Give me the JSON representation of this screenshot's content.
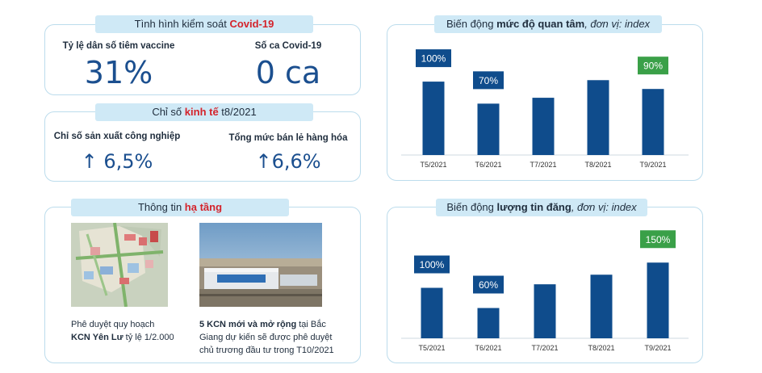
{
  "covid": {
    "title_prefix": "Tình hình kiểm soát ",
    "title_highlight": "Covid-19",
    "vaccine_label": "Tỷ lệ dân số tiêm vaccine",
    "vaccine_value": "31%",
    "cases_label": "Số ca Covid-19",
    "cases_value": "0 ca"
  },
  "economy": {
    "title_prefix": "Chỉ số ",
    "title_highlight": "kinh tế",
    "title_suffix": " t8/2021",
    "industry_label": "Chỉ số sản xuất công nghiệp",
    "industry_value": "6,5%",
    "retail_label": "Tổng mức bán lẻ hàng hóa",
    "retail_value": "6,6%"
  },
  "infrastructure": {
    "title_prefix": "Thông tin ",
    "title_highlight": "hạ tầng",
    "caption1_line1": "Phê duyệt quy hoạch",
    "caption1_bold": "KCN Yên Lư",
    "caption1_rest": " tỷ lệ 1/2.000",
    "caption2_bold": "5 KCN mới và mở rộng",
    "caption2_rest1": " tại Bắc",
    "caption2_line2": "Giang dự kiến sẽ được phê duyệt",
    "caption2_line3": "chủ trương đầu tư trong T10/2021"
  },
  "colors": {
    "bar": "#0f4c8c",
    "label_blue": "#0f4c8c",
    "label_green": "#3aa048"
  },
  "chart_data": [
    {
      "type": "bar",
      "title_prefix": "Biến động ",
      "title_bold": "mức độ quan tâm",
      "title_italic": ", đơn vị: index",
      "categories": [
        "T5/2021",
        "T6/2021",
        "T7/2021",
        "T8/2021",
        "T9/2021"
      ],
      "values": [
        100,
        70,
        78,
        102,
        90
      ],
      "labels": [
        "100%",
        "70%",
        "",
        "",
        "90%"
      ],
      "label_colors": [
        "blue",
        "blue",
        "",
        "",
        "green"
      ],
      "ylim": [
        0,
        110
      ]
    },
    {
      "type": "bar",
      "title_prefix": "Biến động ",
      "title_bold": "lượng tin đăng",
      "title_italic": ", đơn vị: index",
      "categories": [
        "T5/2021",
        "T6/2021",
        "T7/2021",
        "T8/2021",
        "T9/2021"
      ],
      "values": [
        100,
        60,
        107,
        126,
        150
      ],
      "labels": [
        "100%",
        "60%",
        "",
        "",
        "150%"
      ],
      "label_colors": [
        "blue",
        "blue",
        "",
        "",
        "green"
      ],
      "ylim": [
        0,
        160
      ]
    }
  ]
}
